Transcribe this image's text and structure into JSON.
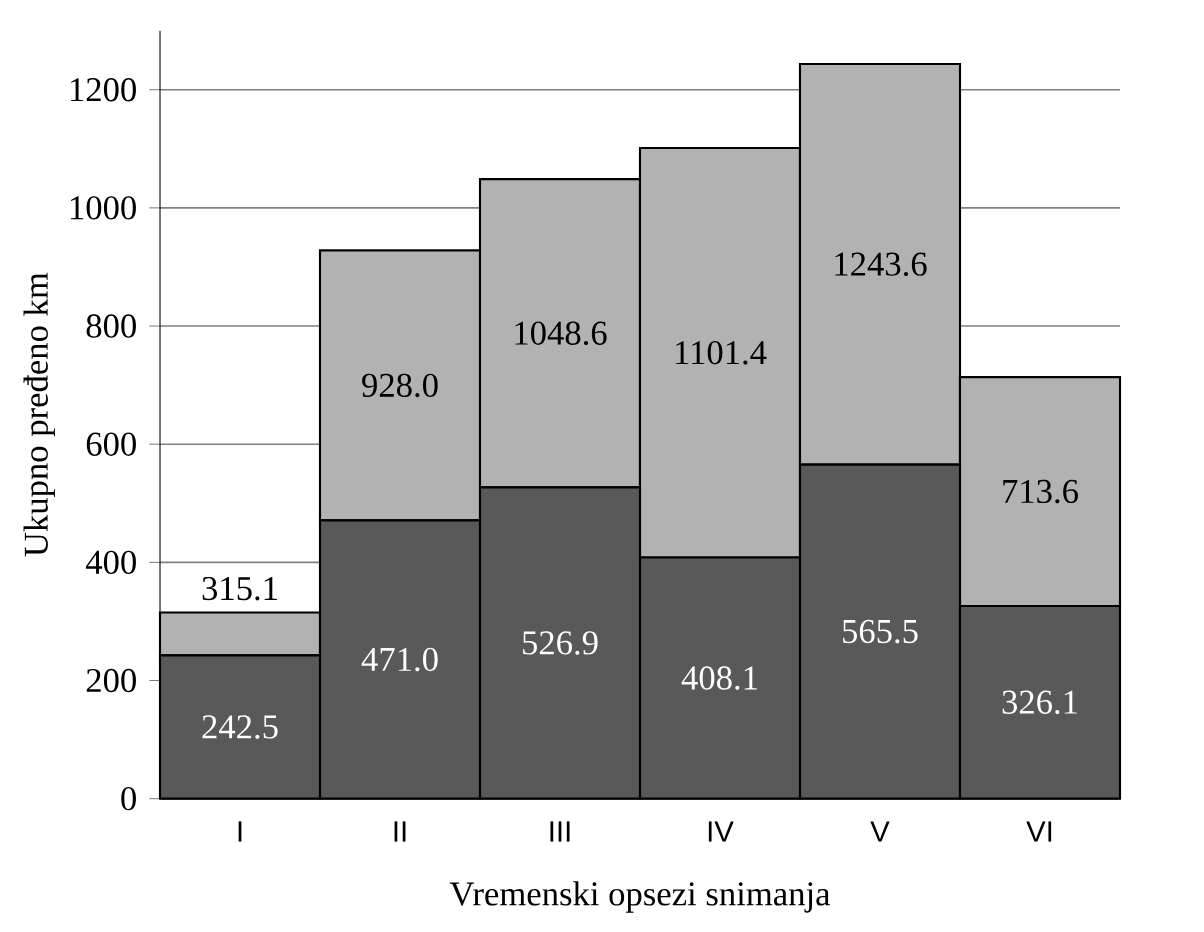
{
  "chart_data": {
    "type": "bar",
    "stacked": true,
    "xlabel": "Vremenski opsezi snimanja",
    "ylabel": "Ukupno pređeno km",
    "categories": [
      "I",
      "II",
      "III",
      "IV",
      "V",
      "VI"
    ],
    "series": [
      {
        "color": "#595959",
        "values": [
          242.5,
          471.0,
          526.9,
          408.1,
          565.5,
          326.1
        ],
        "value_labels": [
          "242.5",
          "471.0",
          "526.9",
          "408.1",
          "565.5",
          "326.1"
        ]
      },
      {
        "color": "#b2b2b2",
        "values": [
          72.6,
          457.0,
          521.7,
          693.3,
          678.1,
          387.5
        ]
      }
    ],
    "totals": [
      "315.1",
      "928.0",
      "1048.6",
      "1101.4",
      "1243.6",
      "713.6"
    ],
    "ylim": [
      0,
      1300
    ],
    "yticks": [
      0,
      200,
      400,
      600,
      800,
      1000,
      1200
    ],
    "grid": "y"
  }
}
